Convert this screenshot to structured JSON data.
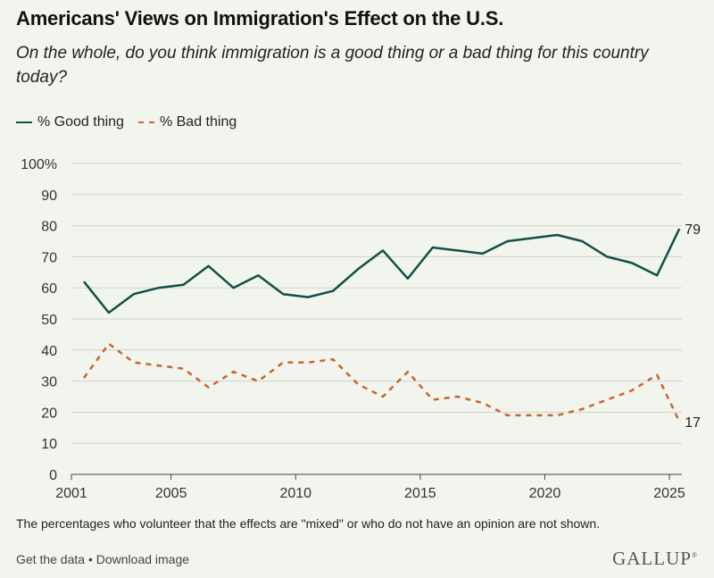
{
  "title": "Americans' Views on Immigration's Effect on the U.S.",
  "subtitle": "On the whole, do you think immigration is a good thing or a bad thing for this country today?",
  "legend": {
    "good": "% Good thing",
    "bad": "% Bad thing"
  },
  "colors": {
    "good": "#0f5147",
    "bad": "#c8662c",
    "grid": "#cfd3cb",
    "axis": "#444444"
  },
  "note": "The percentages who volunteer that the effects are \"mixed\" or who do not have an opinion are not shown.",
  "footer": {
    "get_data": "Get the data",
    "separator": "•",
    "download": "Download image",
    "brand": "GALLUP"
  },
  "chart_data": {
    "type": "line",
    "ylim": [
      0,
      100
    ],
    "xlim": [
      2001,
      2025.5
    ],
    "y_ticks": [
      "0",
      "10",
      "20",
      "30",
      "40",
      "50",
      "60",
      "70",
      "80",
      "90",
      "100%"
    ],
    "x_ticks": [
      "2001",
      "2005",
      "2010",
      "2015",
      "2020",
      "2025"
    ],
    "grid": true,
    "legend_position": "top-left",
    "series": [
      {
        "name": "% Good thing",
        "style": "solid",
        "end_label": "79",
        "points": [
          [
            2001.5,
            62
          ],
          [
            2002.5,
            52
          ],
          [
            2003.5,
            58
          ],
          [
            2004.5,
            60
          ],
          [
            2005.5,
            61
          ],
          [
            2006.5,
            67
          ],
          [
            2007.5,
            60
          ],
          [
            2008.5,
            64
          ],
          [
            2009.5,
            58
          ],
          [
            2010.5,
            57
          ],
          [
            2011.5,
            59
          ],
          [
            2012.5,
            66
          ],
          [
            2013.5,
            72
          ],
          [
            2014.5,
            63
          ],
          [
            2015.5,
            73
          ],
          [
            2016.5,
            72
          ],
          [
            2017.5,
            71
          ],
          [
            2018.5,
            75
          ],
          [
            2019.5,
            76
          ],
          [
            2020.5,
            77
          ],
          [
            2021.5,
            75
          ],
          [
            2022.5,
            70
          ],
          [
            2023.5,
            68
          ],
          [
            2024.5,
            64
          ],
          [
            2025.4,
            79
          ]
        ]
      },
      {
        "name": "% Bad thing",
        "style": "dashed",
        "end_label": "17",
        "points": [
          [
            2001.5,
            31
          ],
          [
            2002.5,
            42
          ],
          [
            2003.5,
            36
          ],
          [
            2004.5,
            35
          ],
          [
            2005.5,
            34
          ],
          [
            2006.5,
            28
          ],
          [
            2007.5,
            33
          ],
          [
            2008.5,
            30
          ],
          [
            2009.5,
            36
          ],
          [
            2010.5,
            36
          ],
          [
            2011.5,
            37
          ],
          [
            2012.5,
            29
          ],
          [
            2013.5,
            25
          ],
          [
            2014.5,
            33
          ],
          [
            2015.5,
            24
          ],
          [
            2016.5,
            25
          ],
          [
            2017.5,
            23
          ],
          [
            2018.5,
            19
          ],
          [
            2019.5,
            19
          ],
          [
            2020.5,
            19
          ],
          [
            2021.5,
            21
          ],
          [
            2022.5,
            24
          ],
          [
            2023.5,
            27
          ],
          [
            2024.5,
            32
          ],
          [
            2025.4,
            17
          ]
        ]
      }
    ]
  }
}
